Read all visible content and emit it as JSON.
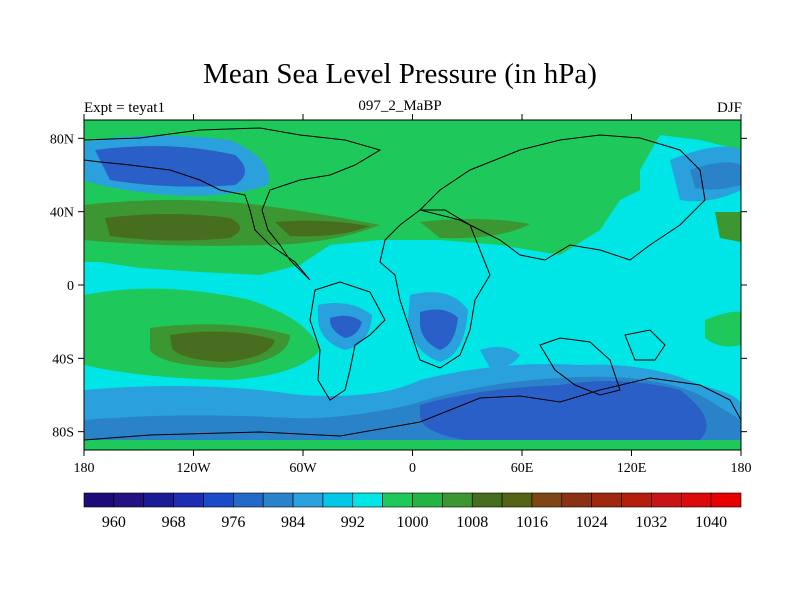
{
  "title": "Mean Sea Level Pressure (in hPa)",
  "left_label": "Expt = teyat1",
  "center_label": "097_2_MaBP",
  "right_label": "DJF",
  "map": {
    "lon_range": [
      -180,
      180
    ],
    "lat_range": [
      -90,
      90
    ],
    "lon_ticks": [
      {
        "value": -180,
        "label": "180"
      },
      {
        "value": -120,
        "label": "120W"
      },
      {
        "value": -60,
        "label": "60W"
      },
      {
        "value": 0,
        "label": "0"
      },
      {
        "value": 60,
        "label": "60E"
      },
      {
        "value": 120,
        "label": "120E"
      },
      {
        "value": 180,
        "label": "180"
      }
    ],
    "lat_ticks": [
      {
        "value": 80,
        "label": "80N"
      },
      {
        "value": 40,
        "label": "40N"
      },
      {
        "value": 0,
        "label": "0"
      },
      {
        "value": -40,
        "label": "40S"
      },
      {
        "value": -80,
        "label": "80S"
      }
    ]
  },
  "colorbar": {
    "levels": [
      956,
      960,
      964,
      968,
      972,
      976,
      980,
      984,
      988,
      992,
      996,
      1000,
      1004,
      1008,
      1012,
      1016,
      1020,
      1024,
      1028,
      1032,
      1036,
      1040,
      1044
    ],
    "colors": [
      "#1e0a78",
      "#231281",
      "#1a1c96",
      "#1e2db4",
      "#1a4bc8",
      "#2369c8",
      "#2a82c8",
      "#2aa0dc",
      "#00c8e6",
      "#00e6e6",
      "#1ec85a",
      "#23b446",
      "#3c9632",
      "#466e1e",
      "#556414",
      "#7d4614",
      "#8c3214",
      "#a0280f",
      "#b41e0a",
      "#c81414",
      "#dc0a0a",
      "#e60000"
    ],
    "labels": [
      {
        "value": 960,
        "label": "960"
      },
      {
        "value": 968,
        "label": "968"
      },
      {
        "value": 976,
        "label": "976"
      },
      {
        "value": 984,
        "label": "984"
      },
      {
        "value": 992,
        "label": "992"
      },
      {
        "value": 1000,
        "label": "1000"
      },
      {
        "value": 1008,
        "label": "1008"
      },
      {
        "value": 1016,
        "label": "1016"
      },
      {
        "value": 1024,
        "label": "1024"
      },
      {
        "value": 1032,
        "label": "1032"
      },
      {
        "value": 1040,
        "label": "1040"
      }
    ]
  },
  "colors": {
    "low_deep": "#2a5fc8",
    "low_mid": "#2aa0dc",
    "background": "#00e6e6",
    "green": "#1ec85a",
    "high": "#466e1e"
  }
}
